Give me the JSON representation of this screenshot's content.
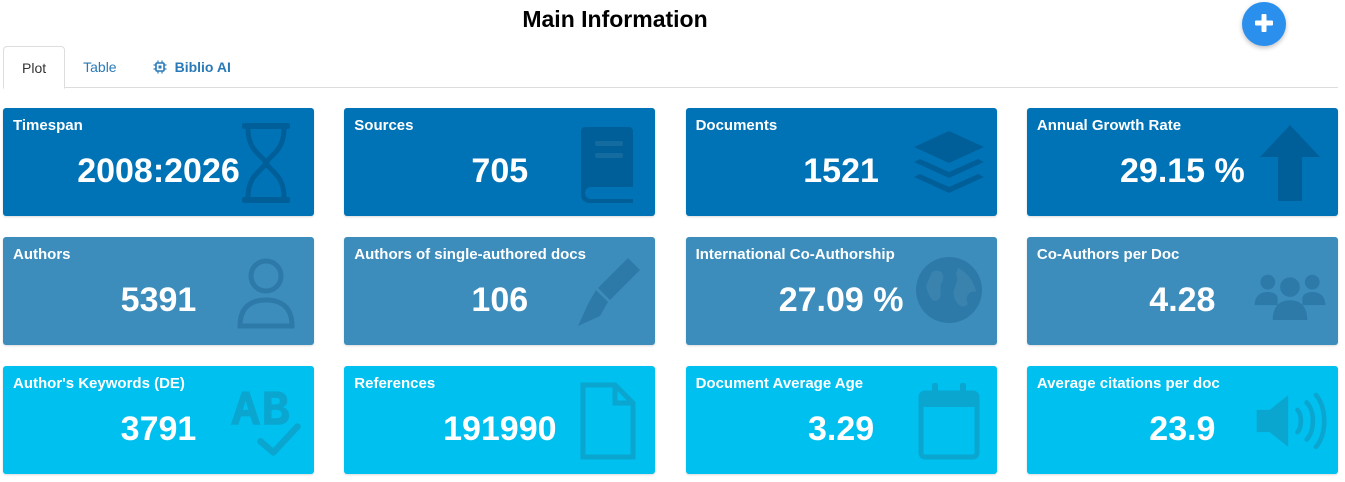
{
  "header": {
    "title": "Main Information",
    "add_button_icon": "plus-icon",
    "accent_color": "#2b8fee"
  },
  "tabs": [
    {
      "label": "Plot",
      "active": true
    },
    {
      "label": "Table",
      "active": false
    },
    {
      "label": "Biblio AI",
      "active": false,
      "icon": "chip-icon"
    }
  ],
  "colors": {
    "row_dark": "#0073b7",
    "row_mid": "#3c8dbc",
    "row_light": "#00c0ef"
  },
  "cards": [
    {
      "label": "Timespan",
      "value": "2008:2026",
      "icon": "hourglass-icon"
    },
    {
      "label": "Sources",
      "value": "705",
      "icon": "book-icon"
    },
    {
      "label": "Documents",
      "value": "1521",
      "icon": "layers-icon"
    },
    {
      "label": "Annual Growth Rate",
      "value": "29.15 %",
      "icon": "arrow-up-icon"
    },
    {
      "label": "Authors",
      "value": "5391",
      "icon": "user-icon"
    },
    {
      "label": "Authors of single-authored docs",
      "value": "106",
      "icon": "pen-nib-icon"
    },
    {
      "label": "International Co-Authorship",
      "value": "27.09 %",
      "icon": "globe-icon"
    },
    {
      "label": "Co-Authors per Doc",
      "value": "4.28",
      "icon": "users-icon"
    },
    {
      "label": "Author's Keywords (DE)",
      "value": "3791",
      "icon": "spell-check-icon"
    },
    {
      "label": "References",
      "value": "191990",
      "icon": "file-icon"
    },
    {
      "label": "Document Average Age",
      "value": "3.29",
      "icon": "calendar-icon"
    },
    {
      "label": "Average citations per doc",
      "value": "23.9",
      "icon": "volume-icon"
    }
  ]
}
